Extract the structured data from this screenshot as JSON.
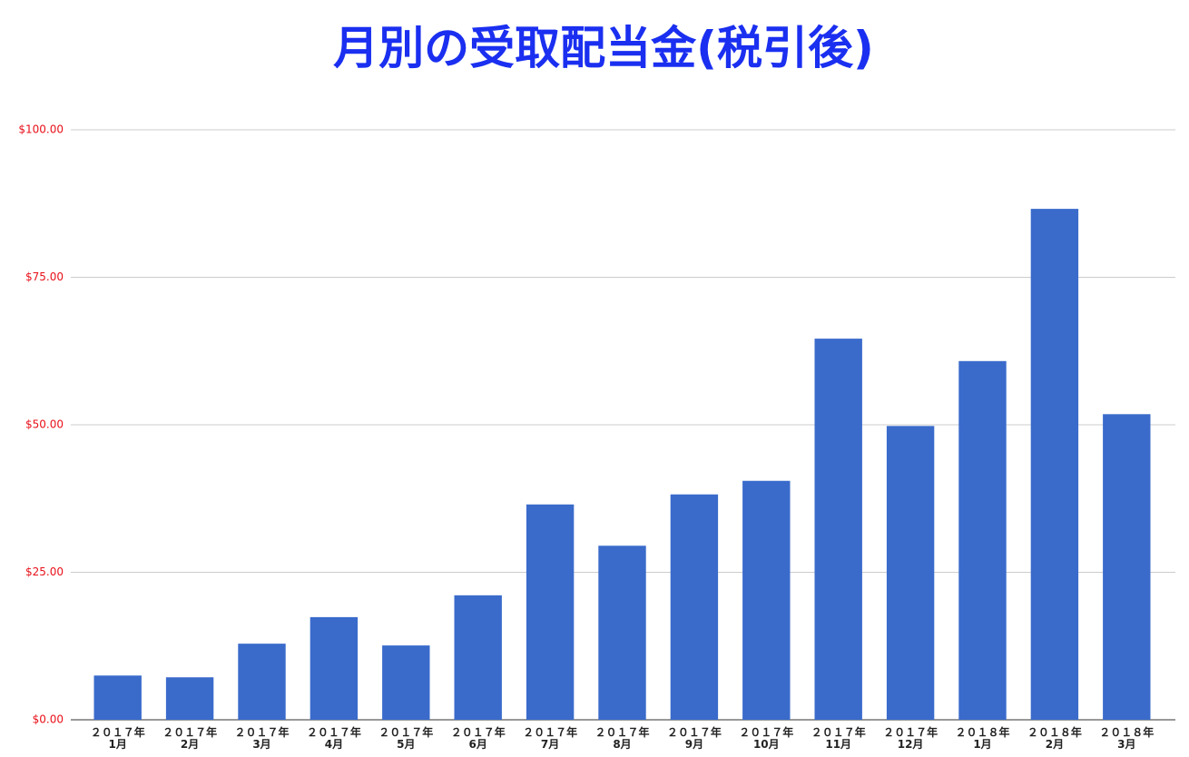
{
  "chart_data": {
    "type": "bar",
    "title": "月別の受取配当金(税引後)",
    "categories": [
      "２０１７年\n1月",
      "２０１７年\n2月",
      "２０１７年\n3月",
      "２０１７年\n4月",
      "２０１７年\n5月",
      "２０１７年\n6月",
      "２０１７年\n7月",
      "２０１７年\n8月",
      "２０１７年\n9月",
      "２０１７年\n10月",
      "２０１７年\n11月",
      "２０１７年\n12月",
      "２０１８年\n1月",
      "２０１８年\n2月",
      "２０１８年\n3月"
    ],
    "values": [
      7.5,
      7.2,
      12.9,
      17.4,
      12.6,
      21.1,
      36.5,
      29.5,
      38.2,
      40.5,
      64.6,
      49.8,
      60.8,
      86.6,
      51.8
    ],
    "color": "#3a6bcb",
    "ylim": [
      0,
      100
    ],
    "yticks": [
      {
        "value": 0,
        "label": "$0.00"
      },
      {
        "value": 25,
        "label": "$25.00"
      },
      {
        "value": 50,
        "label": "$50.00"
      },
      {
        "value": 75,
        "label": "$75.00"
      },
      {
        "value": 100,
        "label": "$100.00"
      }
    ],
    "grid": true
  }
}
